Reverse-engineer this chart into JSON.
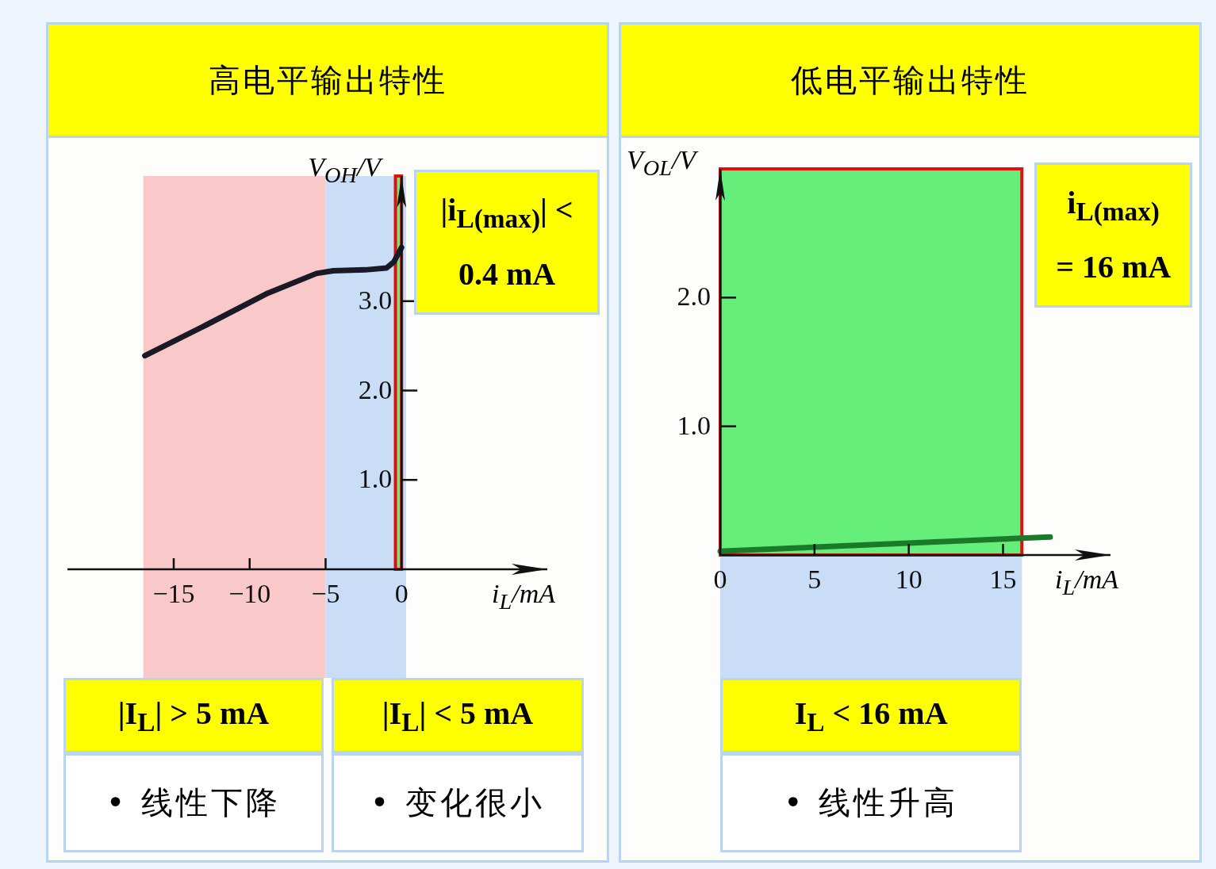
{
  "chart_data": [
    {
      "type": "line",
      "title": "高电平输出特性",
      "xlabel": "i$_{L}$/mA",
      "ylabel": "V$_{OH}$/V",
      "xlim": [
        -22,
        9.6
      ],
      "ylim": [
        0,
        4.4
      ],
      "xticks": [
        {
          "value": -15,
          "label": "−15"
        },
        {
          "value": -10,
          "label": "−10"
        },
        {
          "value": -5,
          "label": "−5"
        },
        0
      ],
      "yticks": [
        {
          "value": 1,
          "label": "1.0"
        },
        {
          "value": 2,
          "label": "2.0"
        },
        {
          "value": 3,
          "label": "3.0"
        }
      ],
      "grid": false,
      "series": [
        {
          "color": "#1a1a26",
          "x": [
            -16.9,
            -12.9,
            -8.8,
            -5.6,
            -4.5,
            -2.4,
            -1.0,
            -0.5,
            0
          ],
          "values": [
            2.39,
            2.73,
            3.09,
            3.31,
            3.34,
            3.35,
            3.37,
            3.44,
            3.6
          ]
        }
      ],
      "bands": [
        {
          "axis": "x",
          "from": -17,
          "to": -5,
          "label": "|I$_{L}$| > 5 mA",
          "color": "#f9c9c9"
        },
        {
          "axis": "x",
          "from": -5,
          "to": 0.3,
          "label": "|I$_{L}$| < 5 mA",
          "color": "#c9ddf6"
        },
        {
          "axis": "x",
          "from": -0.4,
          "to": 0,
          "label": "|i$_{L(max)}$| < 0.4 mA",
          "color": "#66ee7a"
        }
      ],
      "annotations": [
        "• 线性下降",
        "• 变化很小"
      ]
    },
    {
      "type": "line",
      "title": "低电平输出特性",
      "xlabel": "i$_{L}$/mA",
      "ylabel": "V$_{OL}$/V",
      "xlim": [
        0,
        20.7
      ],
      "ylim": [
        0,
        3.0
      ],
      "xticks": [
        0,
        5,
        10,
        15
      ],
      "yticks": [
        {
          "value": 1,
          "label": "1.0"
        },
        {
          "value": 2,
          "label": "2.0"
        }
      ],
      "grid": false,
      "series": [
        {
          "color": "#1a7a2a",
          "x": [
            0,
            17.5
          ],
          "values": [
            0.03,
            0.14
          ]
        }
      ],
      "bands": [
        {
          "axis": "x",
          "from": 0,
          "to": 16,
          "label": "I$_{L}$ < 16 mA",
          "color": "#c9ddf6"
        },
        {
          "axis": "x",
          "from": 0,
          "to": 16,
          "label": "i$_{L(max)}$ = 16 mA",
          "color": "#66ee7a"
        }
      ],
      "annotations": [
        "• 线性升高"
      ]
    }
  ]
}
